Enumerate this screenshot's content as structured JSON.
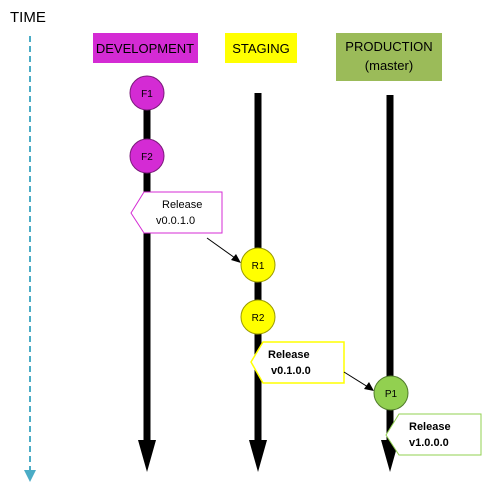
{
  "time_label": "TIME",
  "columns": {
    "development": {
      "label": "DEVELOPMENT",
      "color": "#d42bd4"
    },
    "staging": {
      "label": "STAGING",
      "color": "#ffff00"
    },
    "production": {
      "label_line1": "PRODUCTION",
      "label_line2": "(master)",
      "color": "#9bbb59"
    }
  },
  "commits": {
    "f1": {
      "label": "F1",
      "color": "#d42bd4"
    },
    "f2": {
      "label": "F2",
      "color": "#d42bd4"
    },
    "r1": {
      "label": "R1",
      "color": "#ffff00"
    },
    "r2": {
      "label": "R2",
      "color": "#ffff00"
    },
    "p1": {
      "label": "P1",
      "color": "#92d050"
    }
  },
  "callouts": {
    "dev_release": {
      "line1": "Release",
      "line2": "v0.0.1.0",
      "border_color": "#d42bd4"
    },
    "staging_release": {
      "line1": "Release",
      "line2": "v0.1.0.0",
      "border_color": "#ffff00"
    },
    "production_release": {
      "line1": "Release",
      "line2": "v1.0.0.0",
      "border_color": "#92d050"
    }
  },
  "colors": {
    "time_arrow": "#4bacc6",
    "branch_line": "#000000"
  }
}
